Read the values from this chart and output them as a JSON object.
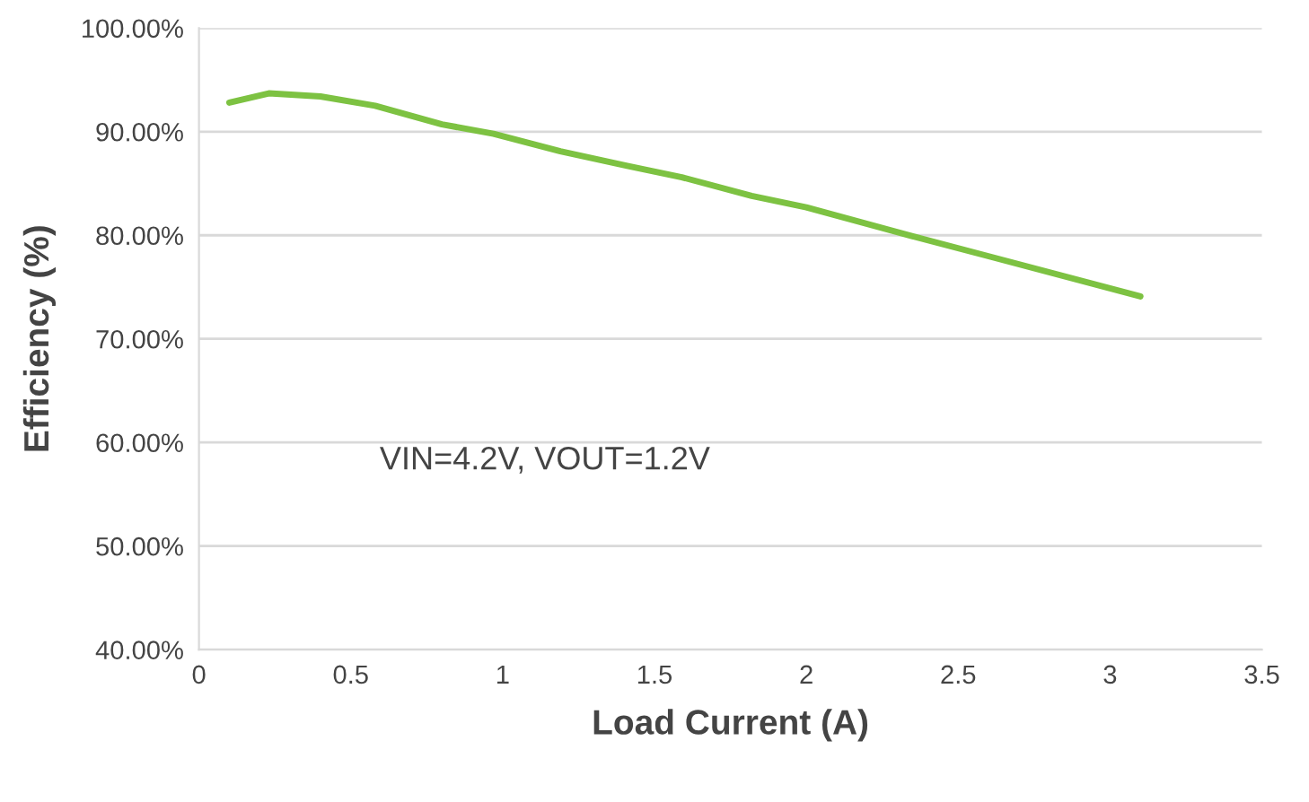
{
  "chart_data": {
    "type": "line",
    "xlabel": "Load Current (A)",
    "ylabel": "Efficiency (%)",
    "annotations": [
      "VIN=4.2V, VOUT=1.2V"
    ],
    "series": [
      {
        "color": "#7dc242",
        "x": [
          0.1,
          0.23,
          0.4,
          0.58,
          0.8,
          0.97,
          1.19,
          1.41,
          1.59,
          1.82,
          2.0,
          2.35,
          2.61,
          3.1
        ],
        "values": [
          92.8,
          93.7,
          93.4,
          92.5,
          90.7,
          89.8,
          88.1,
          86.7,
          85.6,
          83.8,
          82.7,
          79.9,
          77.9,
          74.1
        ]
      }
    ],
    "xlim": [
      0,
      3.5
    ],
    "xticks": [
      0,
      0.5,
      1,
      1.5,
      2,
      2.5,
      3,
      3.5
    ],
    "ylim": [
      40,
      100
    ],
    "yticks": [
      {
        "value": 40,
        "label": "40.00%"
      },
      {
        "value": 50,
        "label": "50.00%"
      },
      {
        "value": 60,
        "label": "60.00%"
      },
      {
        "value": 70,
        "label": "70.00%"
      },
      {
        "value": 80,
        "label": "80.00%"
      },
      {
        "value": 90,
        "label": "90.00%"
      },
      {
        "value": 100,
        "label": "100.00%"
      }
    ],
    "grid": "y",
    "legend": false,
    "marker": "none",
    "line_style": "solid"
  }
}
